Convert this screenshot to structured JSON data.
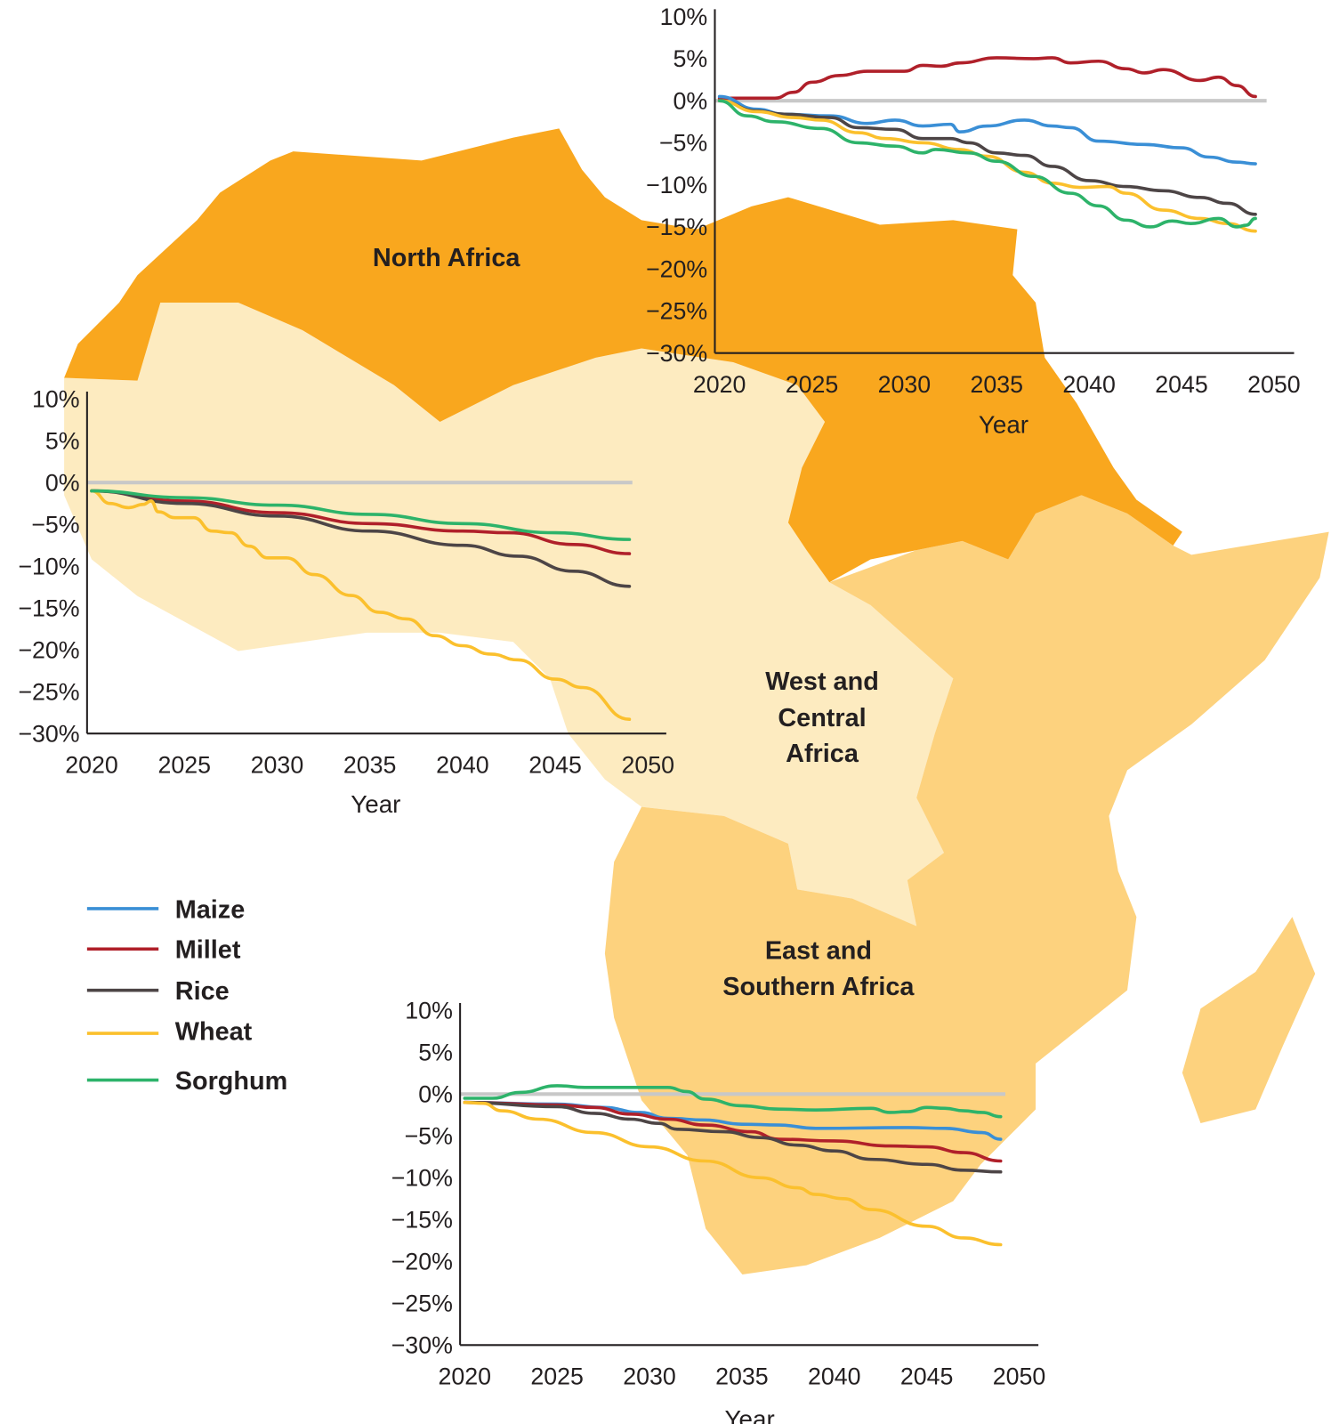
{
  "map": {
    "colors": {
      "north": "#F9A71E",
      "west_central": "#FDEBC0",
      "east_southern": "#FDD27E"
    },
    "regions": {
      "north": [
        "North Africa"
      ],
      "west_central": [
        "West and",
        "Central",
        "Africa"
      ],
      "east_southern": [
        "East and",
        "Southern Africa"
      ]
    }
  },
  "legend": {
    "items": [
      {
        "name": "Maize",
        "color": "#3A8FD6"
      },
      {
        "name": "Millet",
        "color": "#B0202A"
      },
      {
        "name": "Rice",
        "color": "#4D4546"
      },
      {
        "name": "Wheat",
        "color": "#FBC02D"
      },
      {
        "name": "Sorghum",
        "color": "#2DB36A"
      }
    ]
  },
  "chart_data": [
    {
      "type": "line",
      "region": "North Africa",
      "xlabel": "Year",
      "ylabel": "",
      "xlim": [
        2020,
        2050
      ],
      "ylim": [
        -30,
        10
      ],
      "xticks": [
        2020,
        2025,
        2030,
        2035,
        2040,
        2045,
        2050
      ],
      "yticks": [
        "10%",
        "5%",
        "0%",
        "−5%",
        "−10%",
        "−15%",
        "−20%",
        "−25%",
        "−30%"
      ],
      "reference_line": 0,
      "grid": false,
      "series": [
        {
          "name": "Millet",
          "points": [
            [
              2020,
              0.3
            ],
            [
              2023,
              0.3
            ],
            [
              2024,
              1
            ],
            [
              2025,
              2.2
            ],
            [
              2026.5,
              3
            ],
            [
              2028,
              3.5
            ],
            [
              2030,
              3.5
            ],
            [
              2031,
              4.2
            ],
            [
              2032,
              4.1
            ],
            [
              2033,
              4.5
            ],
            [
              2035,
              5.1
            ],
            [
              2037,
              5
            ],
            [
              2038,
              5.1
            ],
            [
              2039,
              4.5
            ],
            [
              2040.5,
              4.7
            ],
            [
              2042,
              3.8
            ],
            [
              2043,
              3.3
            ],
            [
              2044,
              3.7
            ],
            [
              2046,
              2.4
            ],
            [
              2047,
              2.8
            ],
            [
              2048,
              1.8
            ],
            [
              2049,
              0.5
            ]
          ]
        },
        {
          "name": "Maize",
          "points": [
            [
              2020,
              0.5
            ],
            [
              2022,
              -1
            ],
            [
              2023.5,
              -1.6
            ],
            [
              2026,
              -1.8
            ],
            [
              2028,
              -2.7
            ],
            [
              2029.5,
              -2.3
            ],
            [
              2031,
              -3
            ],
            [
              2032.5,
              -2.8
            ],
            [
              2033,
              -3.7
            ],
            [
              2034.5,
              -3
            ],
            [
              2036.5,
              -2.3
            ],
            [
              2038,
              -3
            ],
            [
              2039,
              -3.2
            ],
            [
              2040.5,
              -4.8
            ],
            [
              2043,
              -5.2
            ],
            [
              2045,
              -5.6
            ],
            [
              2046.5,
              -6.7
            ],
            [
              2048,
              -7.3
            ],
            [
              2049,
              -7.5
            ]
          ]
        },
        {
          "name": "Rice",
          "points": [
            [
              2020,
              0
            ],
            [
              2022,
              -1.2
            ],
            [
              2023.5,
              -1.6
            ],
            [
              2026,
              -2
            ],
            [
              2027.5,
              -3.2
            ],
            [
              2029.5,
              -3.4
            ],
            [
              2031,
              -4.5
            ],
            [
              2032.5,
              -4.5
            ],
            [
              2033.5,
              -5
            ],
            [
              2035,
              -6.2
            ],
            [
              2036.5,
              -6.5
            ],
            [
              2038,
              -7.8
            ],
            [
              2040,
              -9.5
            ],
            [
              2042,
              -10.2
            ],
            [
              2044,
              -10.7
            ],
            [
              2046,
              -11.5
            ],
            [
              2047.5,
              -12.2
            ],
            [
              2049,
              -13.5
            ]
          ]
        },
        {
          "name": "Wheat",
          "points": [
            [
              2020,
              0
            ],
            [
              2022,
              -1.3
            ],
            [
              2024,
              -2
            ],
            [
              2025.5,
              -2.3
            ],
            [
              2027.5,
              -3.8
            ],
            [
              2029,
              -4.5
            ],
            [
              2031,
              -5
            ],
            [
              2033,
              -5.8
            ],
            [
              2034.5,
              -6.6
            ],
            [
              2036.5,
              -8.5
            ],
            [
              2038,
              -9.8
            ],
            [
              2039.5,
              -10.3
            ],
            [
              2041,
              -10.2
            ],
            [
              2042,
              -11
            ],
            [
              2044,
              -13
            ],
            [
              2046,
              -14
            ],
            [
              2047.5,
              -14.6
            ],
            [
              2049,
              -15.5
            ]
          ]
        },
        {
          "name": "Sorghum",
          "points": [
            [
              2020,
              0
            ],
            [
              2021.5,
              -1.8
            ],
            [
              2023,
              -2.5
            ],
            [
              2025.5,
              -3.3
            ],
            [
              2027.5,
              -5
            ],
            [
              2029.5,
              -5.4
            ],
            [
              2031,
              -6.2
            ],
            [
              2031.7,
              -5.8
            ],
            [
              2033.5,
              -6.2
            ],
            [
              2035,
              -7.2
            ],
            [
              2037,
              -9
            ],
            [
              2039,
              -11
            ],
            [
              2040.5,
              -12.5
            ],
            [
              2042,
              -14.2
            ],
            [
              2043.3,
              -15
            ],
            [
              2044.5,
              -14.3
            ],
            [
              2045.5,
              -14.6
            ],
            [
              2047,
              -14
            ],
            [
              2048,
              -15
            ],
            [
              2048.5,
              -14.8
            ],
            [
              2049,
              -14
            ]
          ]
        }
      ]
    },
    {
      "type": "line",
      "region": "West and Central Africa",
      "xlabel": "Year",
      "ylabel": "",
      "xlim": [
        2020,
        2050
      ],
      "ylim": [
        -30,
        10
      ],
      "xticks": [
        2020,
        2025,
        2030,
        2035,
        2040,
        2045,
        2050
      ],
      "yticks": [
        "10%",
        "5%",
        "0%",
        "−5%",
        "−10%",
        "−15%",
        "−20%",
        "−25%",
        "−30%"
      ],
      "reference_line": 0,
      "grid": false,
      "series": [
        {
          "name": "Millet",
          "points": [
            [
              2020,
              -1
            ],
            [
              2025,
              -2.2
            ],
            [
              2030,
              -3.6
            ],
            [
              2035,
              -4.9
            ],
            [
              2040,
              -5.8
            ],
            [
              2042.5,
              -6
            ],
            [
              2046,
              -7.4
            ],
            [
              2049,
              -8.5
            ]
          ]
        },
        {
          "name": "Rice",
          "points": [
            [
              2020,
              -1
            ],
            [
              2025,
              -2.5
            ],
            [
              2030,
              -4
            ],
            [
              2035,
              -5.8
            ],
            [
              2040,
              -7.5
            ],
            [
              2043,
              -8.8
            ],
            [
              2046,
              -10.6
            ],
            [
              2049,
              -12.4
            ]
          ]
        },
        {
          "name": "Wheat",
          "points": [
            [
              2020,
              -1
            ],
            [
              2021,
              -2.5
            ],
            [
              2022,
              -3
            ],
            [
              2022.8,
              -2.6
            ],
            [
              2023.2,
              -2.2
            ],
            [
              2023.6,
              -3.5
            ],
            [
              2024.5,
              -4.2
            ],
            [
              2025.5,
              -4.2
            ],
            [
              2026.5,
              -5.8
            ],
            [
              2027.5,
              -6
            ],
            [
              2028.5,
              -7.6
            ],
            [
              2029.5,
              -9
            ],
            [
              2030.5,
              -9
            ],
            [
              2032,
              -11
            ],
            [
              2034,
              -13.5
            ],
            [
              2035.5,
              -15.5
            ],
            [
              2037,
              -16.3
            ],
            [
              2038.5,
              -18.3
            ],
            [
              2040,
              -19.5
            ],
            [
              2041.5,
              -20.5
            ],
            [
              2043,
              -21.2
            ],
            [
              2045,
              -23.5
            ],
            [
              2046.5,
              -24.5
            ],
            [
              2049,
              -28.3
            ]
          ]
        },
        {
          "name": "Sorghum",
          "points": [
            [
              2020,
              -1
            ],
            [
              2025,
              -1.8
            ],
            [
              2030,
              -2.7
            ],
            [
              2035,
              -3.8
            ],
            [
              2040,
              -4.9
            ],
            [
              2045,
              -6
            ],
            [
              2049,
              -6.8
            ]
          ]
        }
      ]
    },
    {
      "type": "line",
      "region": "East and Southern Africa",
      "xlabel": "Year",
      "ylabel": "",
      "xlim": [
        2020,
        2050
      ],
      "ylim": [
        -30,
        10
      ],
      "xticks": [
        2020,
        2025,
        2030,
        2035,
        2040,
        2045,
        2050
      ],
      "yticks": [
        "10%",
        "5%",
        "0%",
        "−5%",
        "−10%",
        "−15%",
        "−20%",
        "−25%",
        "−30%"
      ],
      "reference_line": 0,
      "grid": false,
      "series": [
        {
          "name": "Maize",
          "points": [
            [
              2020,
              -1
            ],
            [
              2025,
              -1.2
            ],
            [
              2027.5,
              -1.6
            ],
            [
              2029.5,
              -2.2
            ],
            [
              2031,
              -2.9
            ],
            [
              2033,
              -3.1
            ],
            [
              2035,
              -3.6
            ],
            [
              2037,
              -3.7
            ],
            [
              2039,
              -4.1
            ],
            [
              2044,
              -4
            ],
            [
              2046,
              -4.1
            ],
            [
              2048,
              -4.6
            ],
            [
              2049,
              -5.4
            ]
          ]
        },
        {
          "name": "Millet",
          "points": [
            [
              2020,
              -1
            ],
            [
              2025,
              -1.3
            ],
            [
              2027,
              -1.6
            ],
            [
              2029,
              -2.4
            ],
            [
              2031,
              -3
            ],
            [
              2033,
              -3.7
            ],
            [
              2035.5,
              -4.5
            ],
            [
              2037,
              -5.4
            ],
            [
              2040,
              -5.6
            ],
            [
              2043,
              -6.2
            ],
            [
              2045,
              -6.3
            ],
            [
              2047,
              -7
            ],
            [
              2049,
              -8
            ]
          ]
        },
        {
          "name": "Rice",
          "points": [
            [
              2020,
              -1
            ],
            [
              2025,
              -1.5
            ],
            [
              2027,
              -2.3
            ],
            [
              2029,
              -3
            ],
            [
              2030.5,
              -3.5
            ],
            [
              2031.5,
              -4.2
            ],
            [
              2034,
              -4.5
            ],
            [
              2036,
              -5.2
            ],
            [
              2038,
              -6.1
            ],
            [
              2040,
              -6.8
            ],
            [
              2042,
              -7.8
            ],
            [
              2045,
              -8.4
            ],
            [
              2047,
              -9.1
            ],
            [
              2049,
              -9.3
            ]
          ]
        },
        {
          "name": "Wheat",
          "points": [
            [
              2020,
              -1
            ],
            [
              2021,
              -1.1
            ],
            [
              2022,
              -2
            ],
            [
              2024,
              -3
            ],
            [
              2027,
              -4.6
            ],
            [
              2030,
              -6.3
            ],
            [
              2033,
              -8
            ],
            [
              2036,
              -10
            ],
            [
              2038,
              -11.2
            ],
            [
              2039,
              -12
            ],
            [
              2040.5,
              -12.5
            ],
            [
              2042,
              -13.8
            ],
            [
              2045,
              -15.8
            ],
            [
              2047,
              -17.2
            ],
            [
              2049,
              -18
            ]
          ]
        },
        {
          "name": "Sorghum",
          "points": [
            [
              2020,
              -0.5
            ],
            [
              2021.5,
              -0.5
            ],
            [
              2023,
              0.2
            ],
            [
              2025,
              1
            ],
            [
              2026.5,
              0.8
            ],
            [
              2028,
              0.8
            ],
            [
              2031,
              0.8
            ],
            [
              2032,
              0.3
            ],
            [
              2033,
              -0.6
            ],
            [
              2035,
              -1.4
            ],
            [
              2037,
              -1.8
            ],
            [
              2039,
              -1.9
            ],
            [
              2042,
              -1.7
            ],
            [
              2043,
              -2.2
            ],
            [
              2044,
              -2.1
            ],
            [
              2045,
              -1.6
            ],
            [
              2046,
              -1.7
            ],
            [
              2047,
              -2
            ],
            [
              2048,
              -2.2
            ],
            [
              2049,
              -2.7
            ]
          ]
        }
      ]
    }
  ]
}
